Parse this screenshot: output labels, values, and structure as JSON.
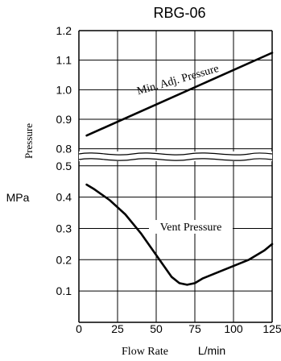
{
  "chart_data": {
    "type": "line",
    "title": "RBG-06",
    "ylabel": "Pressure",
    "yunit": "MPa",
    "xlabel": "Flow Rate",
    "xunit": "L/min",
    "x_ticks": [
      "0",
      "25",
      "50",
      "75",
      "100",
      "125"
    ],
    "y_ticks_upper": [
      "0.8",
      "0.9",
      "1.0",
      "1.1",
      "1.2"
    ],
    "y_ticks_lower": [
      "0.1",
      "0.2",
      "0.3",
      "0.4",
      "0.5"
    ],
    "xlim": [
      0,
      125
    ],
    "ylim_upper": [
      0.78,
      1.2
    ],
    "ylim_lower": [
      0,
      0.52
    ],
    "axis_break": true,
    "grid": true,
    "series": [
      {
        "name": "Min. Adj. Pressure",
        "panel": "upper",
        "x": [
          5,
          125
        ],
        "y": [
          0.845,
          1.125
        ]
      },
      {
        "name": "Vent Pressure",
        "panel": "lower",
        "x": [
          5,
          10,
          20,
          30,
          40,
          50,
          55,
          60,
          65,
          70,
          75,
          80,
          90,
          100,
          110,
          115,
          120,
          125
        ],
        "y": [
          0.44,
          0.425,
          0.39,
          0.345,
          0.285,
          0.215,
          0.18,
          0.145,
          0.125,
          0.12,
          0.125,
          0.14,
          0.16,
          0.18,
          0.2,
          0.215,
          0.23,
          0.25
        ]
      }
    ]
  }
}
